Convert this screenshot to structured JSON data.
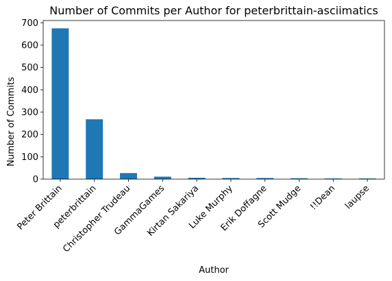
{
  "chart_data": {
    "type": "bar",
    "title": "Number of Commits per Author for peterbrittain-asciimatics",
    "xlabel": "Author",
    "ylabel": "Number of Commits",
    "categories": [
      "Peter Brittain",
      "peterbrittain",
      "Christopher Trudeau",
      "GammaGames",
      "Kirtan Sakariya",
      "Luke Murphy",
      "Erik Doffagne",
      "Scott Mudge",
      "!!Dean",
      "laupse"
    ],
    "values": [
      675,
      268,
      27,
      11,
      6,
      5,
      5,
      4,
      3,
      3
    ],
    "ylim": [
      0,
      710
    ],
    "yticks": [
      0,
      100,
      200,
      300,
      400,
      500,
      600,
      700
    ],
    "bar_color": "#1f77b4",
    "grid": false,
    "legend": "none"
  }
}
